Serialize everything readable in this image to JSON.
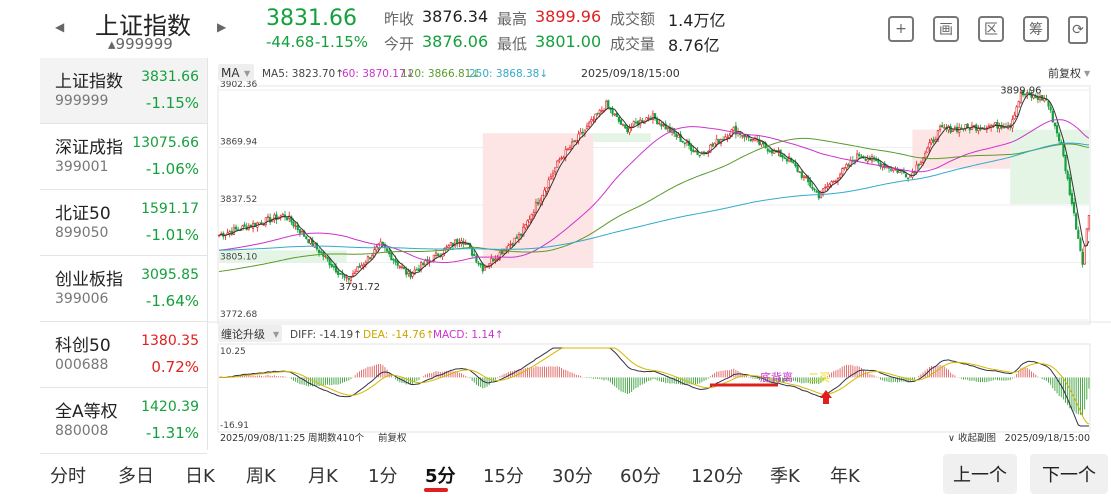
{
  "header": {
    "title": "上证指数",
    "code": "999999",
    "price": "3831.66",
    "change": "-44.68",
    "pct": "-1.15%",
    "stats": [
      {
        "label": "昨收",
        "value": "3876.34",
        "color": "#222"
      },
      {
        "label": "最高",
        "value": "3899.96",
        "color": "#e02020"
      },
      {
        "label": "成交额",
        "value": "1.4万亿",
        "color": "#222"
      },
      {
        "label": "今开",
        "value": "3876.06",
        "color": "#14a03c"
      },
      {
        "label": "最低",
        "value": "3801.00",
        "color": "#14a03c"
      },
      {
        "label": "成交量",
        "value": "8.76亿",
        "color": "#222"
      }
    ],
    "icons": [
      {
        "name": "add-icon",
        "glyph": "+"
      },
      {
        "name": "draw-icon",
        "glyph": "画"
      },
      {
        "name": "zone-icon",
        "glyph": "区"
      },
      {
        "name": "chip-icon",
        "glyph": "筹"
      },
      {
        "name": "rotate-icon",
        "glyph": "⟳"
      }
    ]
  },
  "sidebar": [
    {
      "name": "上证指数",
      "code": "999999",
      "price": "3831.66",
      "pct": "-1.15%",
      "dir": "down"
    },
    {
      "name": "深证成指",
      "code": "399001",
      "price": "13075.66",
      "pct": "-1.06%",
      "dir": "down"
    },
    {
      "name": "北证50",
      "code": "899050",
      "price": "1591.17",
      "pct": "-1.01%",
      "dir": "down"
    },
    {
      "name": "创业板指",
      "code": "399006",
      "price": "3095.85",
      "pct": "-1.64%",
      "dir": "down"
    },
    {
      "name": "科创50",
      "code": "000688",
      "price": "1380.35",
      "pct": "0.72%",
      "dir": "up"
    },
    {
      "name": "全A等权",
      "code": "880008",
      "price": "1420.39",
      "pct": "-1.31%",
      "dir": "down"
    }
  ],
  "main_chart": {
    "indicator": "MA",
    "ma5": "MA5: 3823.70↑",
    "ma60": "60: 3870.17↓",
    "ma120": "120: 3866.81↓",
    "ma250": "250: 3868.38↓",
    "datetime": "2025/09/18/15:00",
    "adjust": "前复权",
    "y_ticks": [
      "3902.36",
      "3869.94",
      "3837.52",
      "3805.10",
      "3772.68"
    ],
    "high_label": "3899.96",
    "low_label": "3791.72",
    "colors": {
      "up": "#e02020",
      "down": "#14a03c",
      "ma5": "#333333",
      "ma60": "#cc33cc",
      "ma120": "#5a9a2a",
      "ma250": "#33aacc"
    }
  },
  "macd": {
    "indicator": "缠论升级",
    "diff": "DIFF: -14.19↑",
    "dea": "DEA: -14.76↑",
    "macd": "MACD: 1.14↑",
    "y_max": "10.25",
    "y_min": "-16.91",
    "signal1": "底背离",
    "signal2": "二买"
  },
  "footer": {
    "start": "2025/09/08/11:25",
    "periods": "周期数410个",
    "adjust": "前复权",
    "collapse": "∨ 收起副图",
    "end": "2025/09/18/15:00"
  },
  "tabs": [
    "分时",
    "多日",
    "日K",
    "周K",
    "月K",
    "1分",
    "5分",
    "15分",
    "30分",
    "60分",
    "120分",
    "季K",
    "年K"
  ],
  "selected_tab": "5分",
  "nav": {
    "prev": "上一个",
    "next": "下一个"
  },
  "chart_data": {
    "type": "candlestick",
    "periods": 410,
    "ylim": [
      3772.68,
      3902.36
    ],
    "high": 3899.96,
    "low": 3791.72,
    "last": 3831.66,
    "key_points": [
      [
        0,
        3820.6
      ],
      [
        31,
        3831.9
      ],
      [
        60,
        3795
      ],
      [
        76,
        3815
      ],
      [
        89,
        3798
      ],
      [
        114,
        3819
      ],
      [
        124,
        3802
      ],
      [
        142,
        3821
      ],
      [
        160,
        3863
      ],
      [
        182,
        3893.9
      ],
      [
        191,
        3880
      ],
      [
        203,
        3888
      ],
      [
        226,
        3866
      ],
      [
        242,
        3880
      ],
      [
        268,
        3863
      ],
      [
        282,
        3843
      ],
      [
        301,
        3866
      ],
      [
        325,
        3854
      ],
      [
        339,
        3880
      ],
      [
        372,
        3883
      ],
      [
        377,
        3899.96
      ],
      [
        389,
        3897
      ],
      [
        396,
        3871
      ],
      [
        406,
        3806
      ],
      [
        409,
        3831.66
      ]
    ]
  }
}
